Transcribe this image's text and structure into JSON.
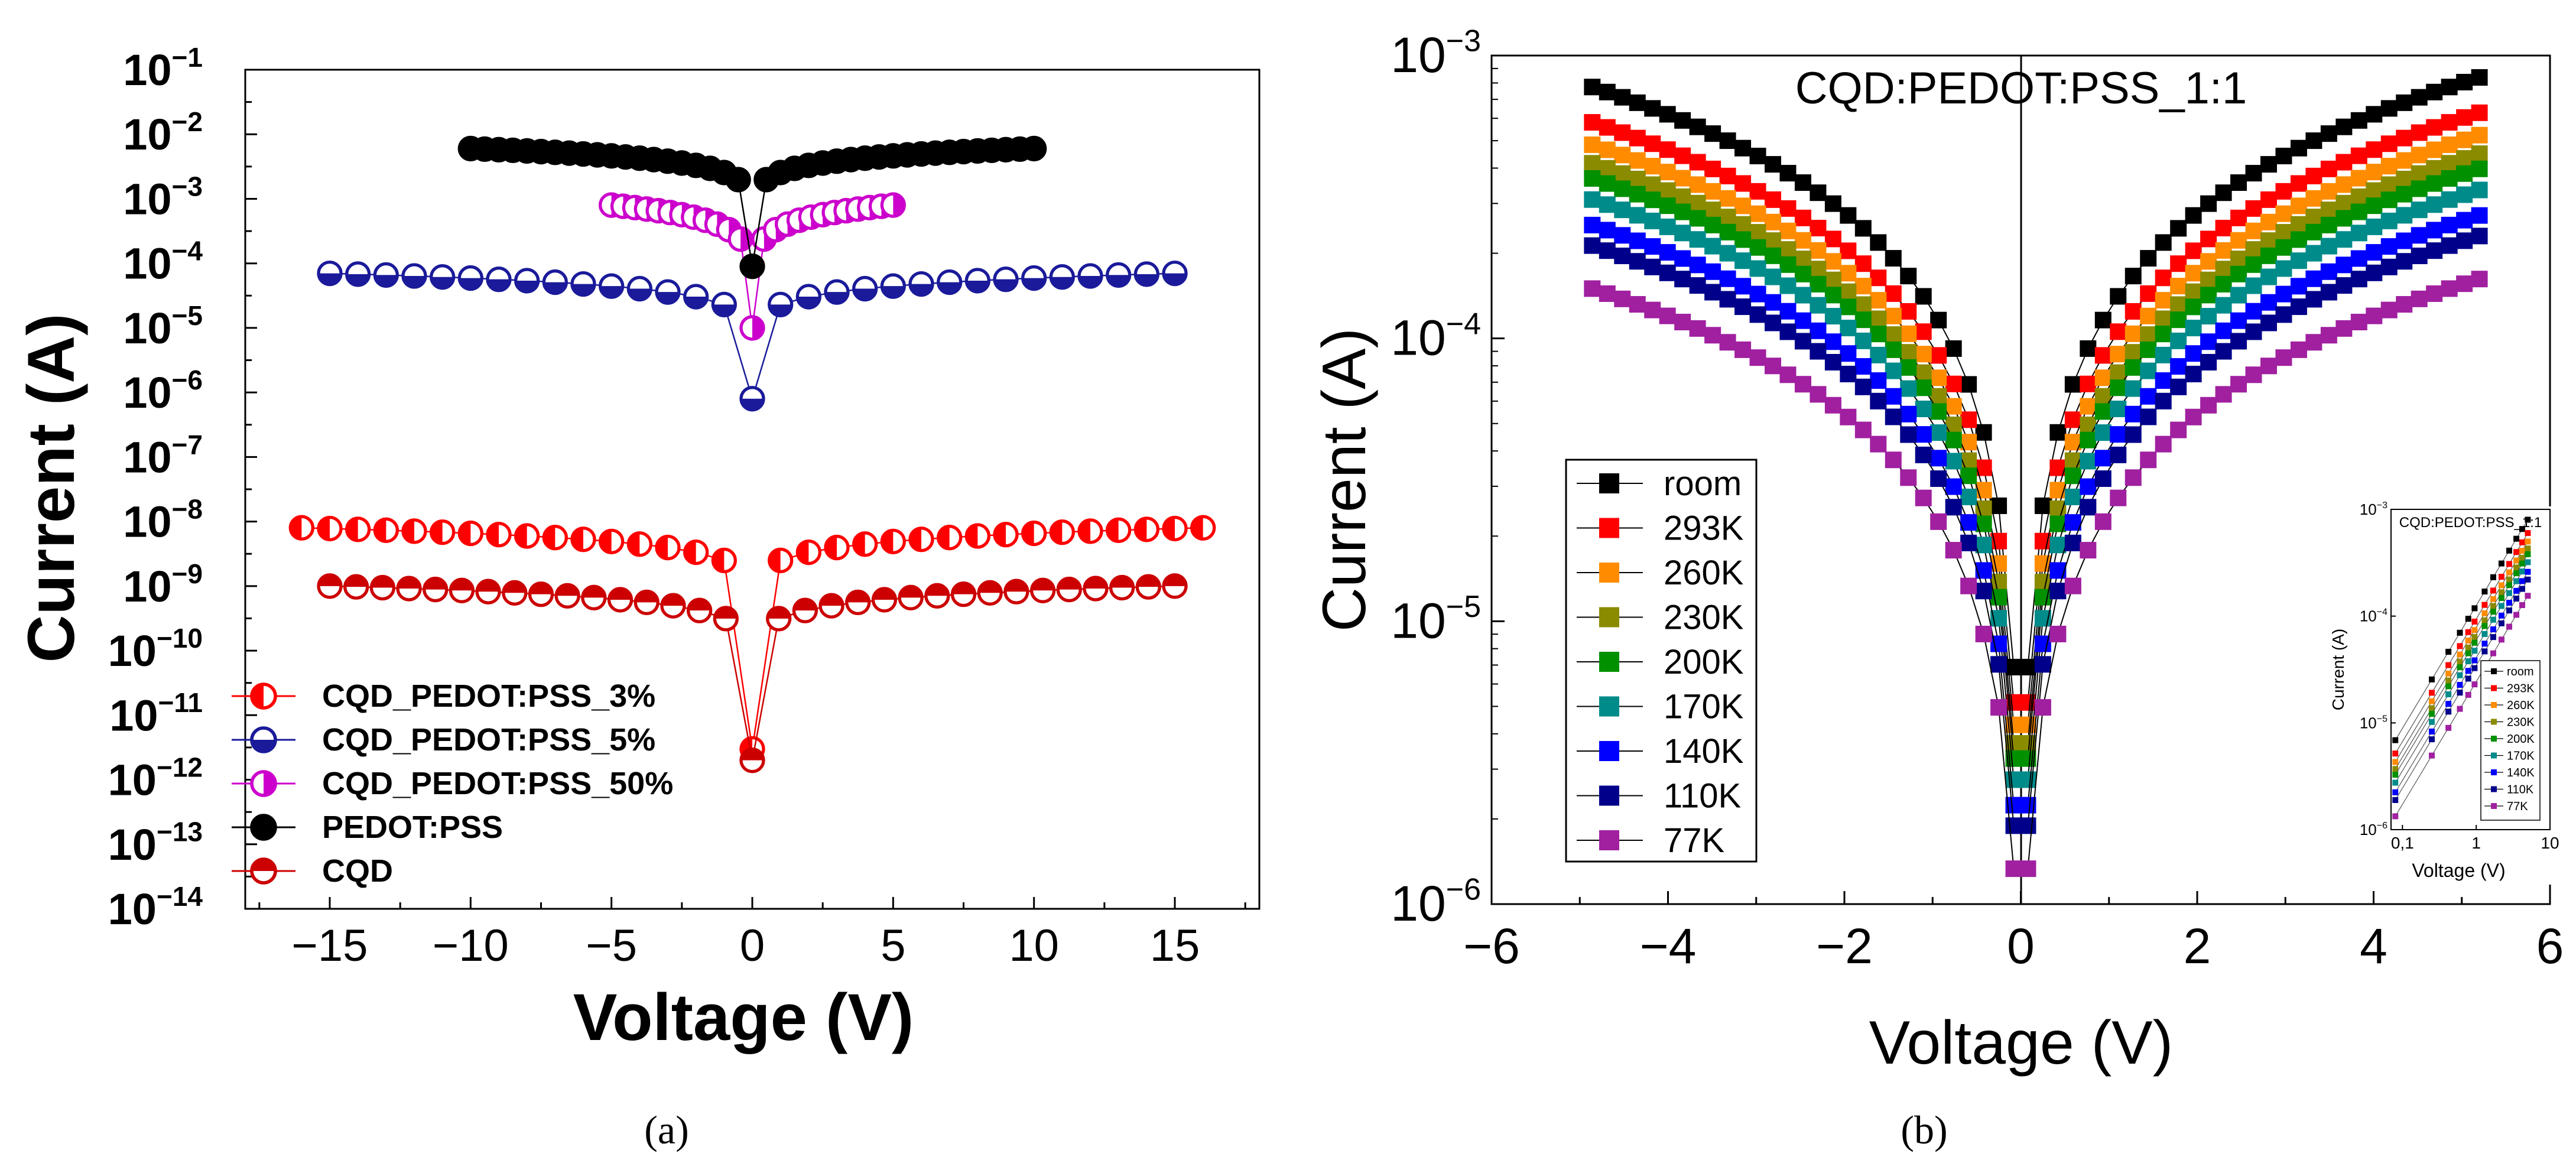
{
  "chart_data": [
    {
      "panel_label": "(a)",
      "type": "scatter",
      "scale": "log-y",
      "xlabel": "Voltage (V)",
      "ylabel": "Current (A)",
      "xlim": [
        -18,
        18
      ],
      "ylim_exp": [
        -14,
        -1
      ],
      "x_ticks": [
        -15,
        -10,
        -5,
        0,
        5,
        10,
        15
      ],
      "x_tick_labels": [
        "−15",
        "−10",
        "−5",
        "0",
        "5",
        "10",
        "15"
      ],
      "y_tick_exps": [
        -14,
        -13,
        -12,
        -11,
        -10,
        -9,
        -8,
        -7,
        -6,
        -5,
        -4,
        -3,
        -2,
        -1
      ],
      "y_tick_base": "10",
      "y_tick_exp_labels": [
        "−14",
        "−13",
        "−12",
        "−11",
        "−10",
        "−9",
        "−8",
        "−7",
        "−6",
        "−5",
        "−4",
        "−3",
        "−2",
        "−1"
      ],
      "legend_position": "bottom-left",
      "series": [
        {
          "name": "CQD_PEDOT:PSS_3%",
          "color": "#ff0000",
          "marker": "half-left",
          "vmax": 16,
          "n": 33,
          "i_edge": 8e-09,
          "i_center": 3e-12,
          "p": 0.42
        },
        {
          "name": "CQD_PEDOT:PSS_5%",
          "color": "#1a1a9a",
          "marker": "half-bottom",
          "vmax": 15,
          "n": 31,
          "i_edge": 7e-05,
          "i_center": 8e-07,
          "p": 0.42
        },
        {
          "name": "CQD_PEDOT:PSS_50%",
          "color": "#cc00cc",
          "marker": "half-right",
          "vmax": 5,
          "n": 25,
          "i_edge": 0.0008,
          "i_center": 1e-05,
          "p": 0.5
        },
        {
          "name": "PEDOT:PSS",
          "color": "#000000",
          "marker": "filled",
          "vmax": 10,
          "n": 41,
          "i_edge": 0.006,
          "i_center": 9e-05,
          "p": 0.38
        },
        {
          "name": "CQD",
          "color": "#cc0000",
          "marker": "half-top",
          "vmax": 15,
          "n": 33,
          "i_edge": 1e-09,
          "i_center": 2e-12,
          "p": 0.42
        }
      ]
    },
    {
      "panel_label": "(b)",
      "type": "scatter",
      "scale": "log-y",
      "title": "CQD:PEDOT:PSS_1:1",
      "xlabel": "Voltage (V)",
      "ylabel": "Current (A)",
      "xlim": [
        -6,
        6
      ],
      "ylim_exp": [
        -6,
        -3
      ],
      "x_ticks": [
        -6,
        -4,
        -2,
        0,
        2,
        4,
        6
      ],
      "x_tick_labels": [
        "−6",
        "−4",
        "−2",
        "0",
        "2",
        "4",
        "6"
      ],
      "y_tick_exps": [
        -6,
        -5,
        -4,
        -3
      ],
      "y_tick_base": "10",
      "y_tick_exp_labels": [
        "−6",
        "−5",
        "−4",
        "−3"
      ],
      "legend_position": "bottom-left",
      "series": [
        {
          "name": "room",
          "color": "#000000",
          "i_max": 0.0008
        },
        {
          "name": "293K",
          "color": "#ff0000",
          "i_max": 0.0006
        },
        {
          "name": "260K",
          "color": "#ff8c00",
          "i_max": 0.0005
        },
        {
          "name": "230K",
          "color": "#8b8b00",
          "i_max": 0.00043
        },
        {
          "name": "200K",
          "color": "#009000",
          "i_max": 0.00038
        },
        {
          "name": "170K",
          "color": "#008b8b",
          "i_max": 0.00032
        },
        {
          "name": "140K",
          "color": "#0000ff",
          "i_max": 0.00026
        },
        {
          "name": "110K",
          "color": "#00008b",
          "i_max": 0.00022
        },
        {
          "name": "77K",
          "color": "#a020a0",
          "i_max": 0.000155
        }
      ],
      "inset": {
        "title": "CQD:PEDOT:PSS_1:1",
        "xlabel": "Voltage (V)",
        "ylabel": "Current (A)",
        "scale": "log-log",
        "x_range": [
          0.07,
          10
        ],
        "y_exp_range": [
          -6,
          -3
        ],
        "x_tick_labels": [
          "0,1",
          "1",
          "10"
        ],
        "y_tick_exp_labels": [
          "−6",
          "−5",
          "−4",
          "−3"
        ]
      }
    }
  ]
}
